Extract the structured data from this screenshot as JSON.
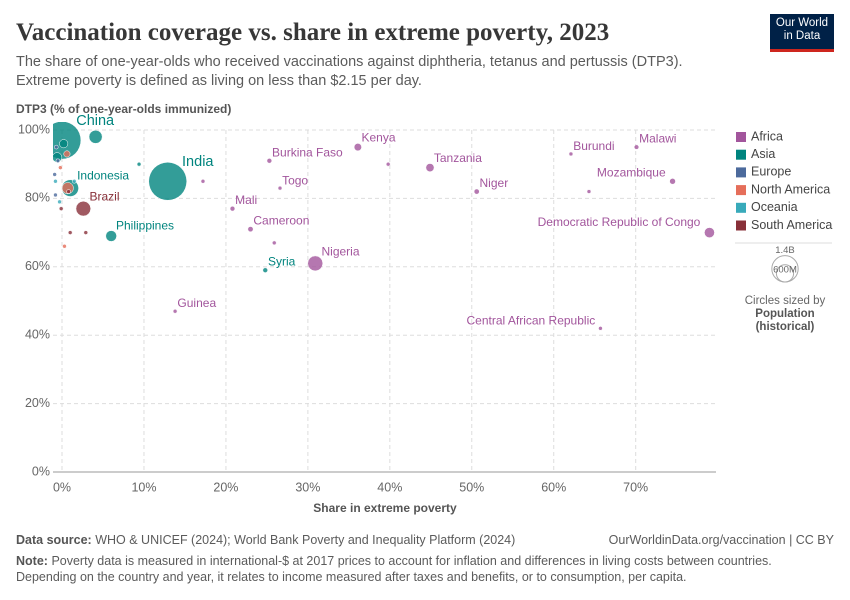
{
  "chart_data": {
    "type": "scatter",
    "title": "Vaccination coverage vs. share in extreme poverty, 2023",
    "subtitle": [
      "The share of one-year-olds who received vaccinations against diphtheria, tetanus and pertussis (DTP3).",
      "Extreme poverty is defined as living on less than $2.15 per day."
    ],
    "y_label": "DTP3 (% of one-year-olds immunized)",
    "x_label": "Share in extreme poverty",
    "xlim": [
      -1.1,
      79.8
    ],
    "ylim": [
      0,
      100
    ],
    "xticks": [
      {
        "value": 0,
        "label": "0%"
      },
      {
        "value": 10,
        "label": "10%"
      },
      {
        "value": 20,
        "label": "20%"
      },
      {
        "value": 30,
        "label": "30%"
      },
      {
        "value": 40,
        "label": "40%"
      },
      {
        "value": 50,
        "label": "50%"
      },
      {
        "value": 60,
        "label": "60%"
      },
      {
        "value": 70,
        "label": "70%"
      }
    ],
    "yticks": [
      {
        "value": 0,
        "label": "0%"
      },
      {
        "value": 20,
        "label": "20%"
      },
      {
        "value": 40,
        "label": "40%"
      },
      {
        "value": 60,
        "label": "60%"
      },
      {
        "value": 80,
        "label": "80%"
      },
      {
        "value": 100,
        "label": "100%"
      }
    ],
    "grid": true,
    "legend_position": "right",
    "size_legend_title": "Circles sized by",
    "size_variable": [
      "Population",
      "(historical)"
    ],
    "size_legend": [
      {
        "value": 1400000000,
        "label": "1.4B"
      },
      {
        "value": 600000000,
        "label": "600M"
      }
    ],
    "series": [
      {
        "name": "Africa",
        "color": "#a2559c",
        "labels": [
          "Kenya",
          "Tanzania",
          "Burkina Faso",
          "Togo",
          "Mali",
          "Cameroon",
          "Nigeria",
          "Guinea",
          "Niger",
          "Burundi",
          "Malawi",
          "Mozambique",
          "Democratic Republic of Congo",
          "Central African Republic",
          null,
          null,
          null,
          null
        ],
        "x": [
          36.1,
          44.9,
          25.3,
          26.6,
          20.8,
          23.0,
          30.9,
          13.8,
          50.6,
          62.1,
          70.1,
          74.5,
          79.0,
          65.7,
          39.8,
          64.3,
          17.2,
          25.9
        ],
        "values": [
          95,
          89,
          91,
          83,
          77,
          71,
          61,
          47,
          82,
          93,
          95,
          85,
          70,
          42,
          90,
          82,
          85,
          67
        ],
        "size": [
          55000000,
          67000000,
          23000000,
          9000000,
          23000000,
          28000000,
          223000000,
          14000000,
          27000000,
          13000000,
          21000000,
          34000000,
          102000000,
          5700000,
          6000000,
          3000000,
          3000000,
          2500000
        ]
      },
      {
        "name": "Asia",
        "color": "#00847e",
        "labels": [
          "China",
          "India",
          "Indonesia",
          "Philippines",
          "Syria",
          null,
          null,
          null,
          null
        ],
        "x": [
          0,
          12.9,
          1.0,
          6.0,
          24.8,
          4.1,
          9.4,
          -0.6,
          0.2
        ],
        "values": [
          97,
          85,
          83,
          69,
          59,
          98,
          90,
          92,
          96
        ],
        "size": [
          1410000000,
          1430000000,
          278000000,
          117000000,
          23000000,
          172000000,
          13000000,
          90000000,
          70000000
        ]
      },
      {
        "name": "Europe",
        "color": "#4c6a9c",
        "labels": [
          null,
          null,
          null,
          null
        ],
        "x": [
          -0.8,
          -0.9,
          -0.5,
          -0.7
        ],
        "values": [
          81,
          87,
          91,
          95
        ],
        "size": [
          10000000,
          5000000,
          8000000,
          3000000
        ]
      },
      {
        "name": "North America",
        "color": "#e56e5a",
        "labels": [
          null,
          null,
          null,
          null
        ],
        "x": [
          0.7,
          0.6,
          0.3,
          -0.2
        ],
        "values": [
          83,
          93,
          66,
          89
        ],
        "size": [
          128000000,
          40000000,
          2000000,
          6000000
        ]
      },
      {
        "name": "Oceania",
        "color": "#38aaba",
        "labels": [
          null,
          null,
          null
        ],
        "x": [
          -0.3,
          -0.8,
          1.5
        ],
        "values": [
          79,
          85,
          85
        ],
        "size": [
          10000000,
          3000000,
          2000000
        ]
      },
      {
        "name": "South America",
        "color": "#883039",
        "labels": [
          "Brazil",
          null,
          null,
          null,
          null
        ],
        "x": [
          2.6,
          1.0,
          2.9,
          -0.1,
          0.8
        ],
        "values": [
          77,
          70,
          70,
          77,
          82
        ],
        "size": [
          216000000,
          12000000,
          3000000,
          3000000,
          8000000
        ]
      }
    ]
  },
  "logo": [
    "Our World",
    "in Data"
  ],
  "footer": {
    "source_label": "Data source:",
    "source": "WHO & UNICEF (2024); World Bank Poverty and Inequality Platform (2024)",
    "url": "OurWorldinData.org/vaccination | CC BY",
    "note_label": "Note:",
    "note": [
      "Poverty data is measured in international-$ at 2017 prices to account for inflation and differences in living costs between countries.",
      "Depending on the country and year, it relates to income measured after taxes and benefits, or to consumption, per capita."
    ]
  }
}
